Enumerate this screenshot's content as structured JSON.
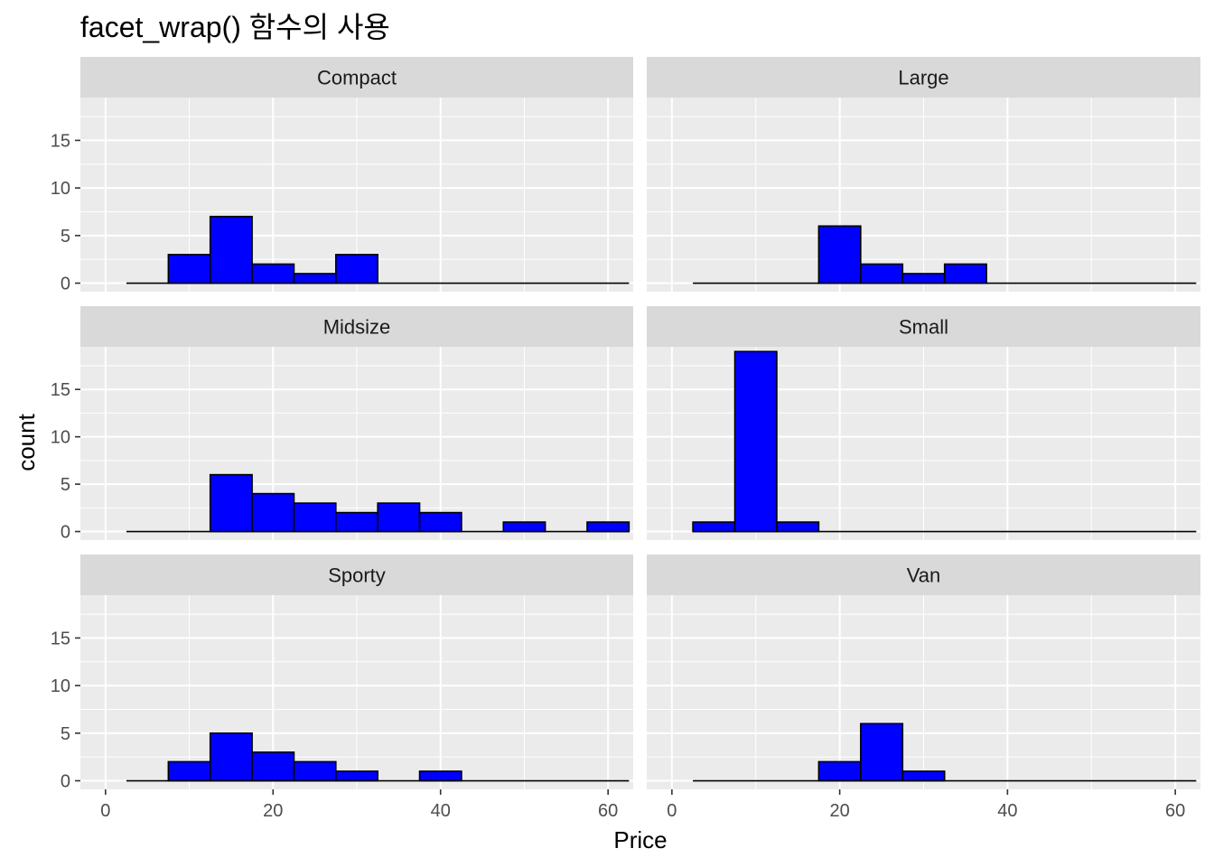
{
  "chart_data": {
    "type": "bar",
    "title": "facet_wrap() 함수의 사용",
    "xlabel": "Price",
    "ylabel": "count",
    "xlim": [
      0,
      63
    ],
    "ylim": [
      0,
      19.5
    ],
    "x_ticks": [
      0,
      20,
      40,
      60
    ],
    "y_ticks": [
      0,
      5,
      10,
      15
    ],
    "bin_width": 5,
    "bin_centers": [
      5,
      10,
      15,
      20,
      25,
      30,
      35,
      40,
      45,
      50,
      55,
      60
    ],
    "fill_color": "#0000ff",
    "outline_color": "#000000",
    "panel_background": "#ebebeb",
    "strip_background": "#d9d9d9",
    "grid": true,
    "facets": [
      {
        "label": "Compact",
        "values": [
          0,
          3,
          7,
          2,
          1,
          3,
          0,
          0,
          0,
          0,
          0,
          0
        ]
      },
      {
        "label": "Large",
        "values": [
          0,
          0,
          0,
          6,
          2,
          1,
          2,
          0,
          0,
          0,
          0,
          0
        ]
      },
      {
        "label": "Midsize",
        "values": [
          0,
          0,
          6,
          4,
          3,
          2,
          3,
          2,
          0,
          1,
          0,
          1
        ]
      },
      {
        "label": "Small",
        "values": [
          1,
          19,
          1,
          0,
          0,
          0,
          0,
          0,
          0,
          0,
          0,
          0
        ]
      },
      {
        "label": "Sporty",
        "values": [
          0,
          2,
          5,
          3,
          2,
          1,
          0,
          1,
          0,
          0,
          0,
          0
        ]
      },
      {
        "label": "Van",
        "values": [
          0,
          0,
          0,
          2,
          6,
          1,
          0,
          0,
          0,
          0,
          0,
          0
        ]
      }
    ]
  }
}
